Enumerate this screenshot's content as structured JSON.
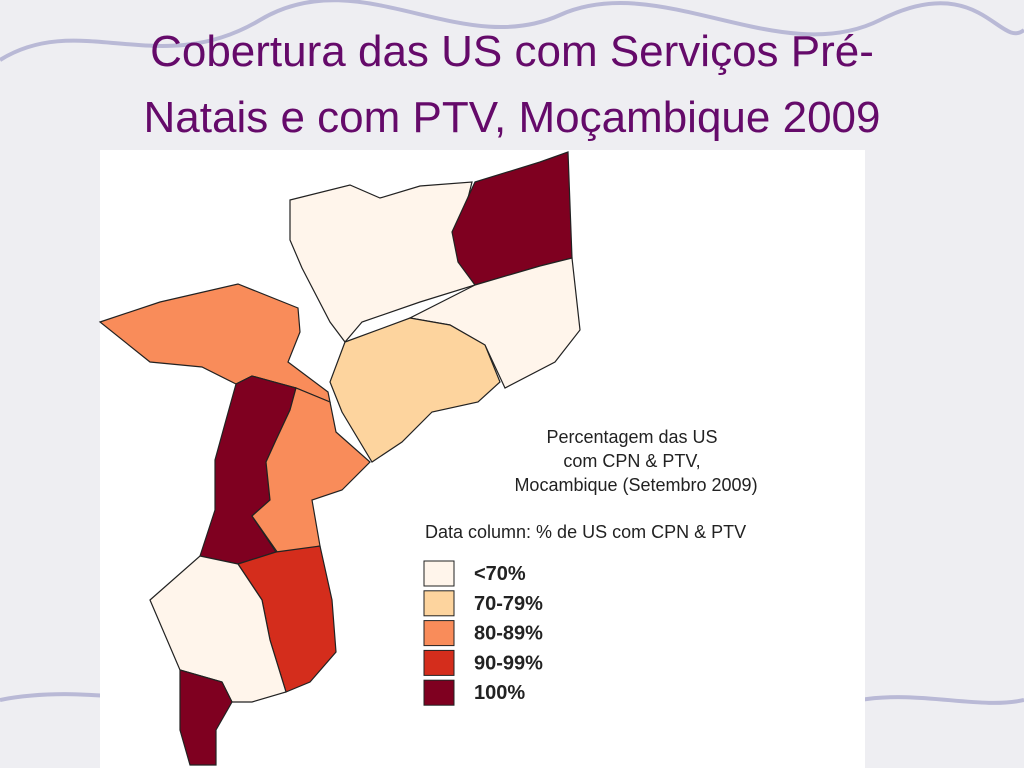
{
  "title_lines": [
    "Cobertura das US com Serviços Pré-",
    "Natais e com PTV, Moçambique 2009"
  ],
  "map": {
    "title_lines": [
      "Percentagem das US",
      "com CPN & PTV,",
      "Mocambique (Setembro 2009)"
    ],
    "data_column": "Data column: % de US com CPN & PTV",
    "legend": [
      {
        "label": "<70%",
        "color": "#fff5eb"
      },
      {
        "label": "70-79%",
        "color": "#fdd49e"
      },
      {
        "label": "80-89%",
        "color": "#f98c5a"
      },
      {
        "label": "90-99%",
        "color": "#d42d1c"
      },
      {
        "label": "100%",
        "color": "#7f0020"
      }
    ]
  }
}
